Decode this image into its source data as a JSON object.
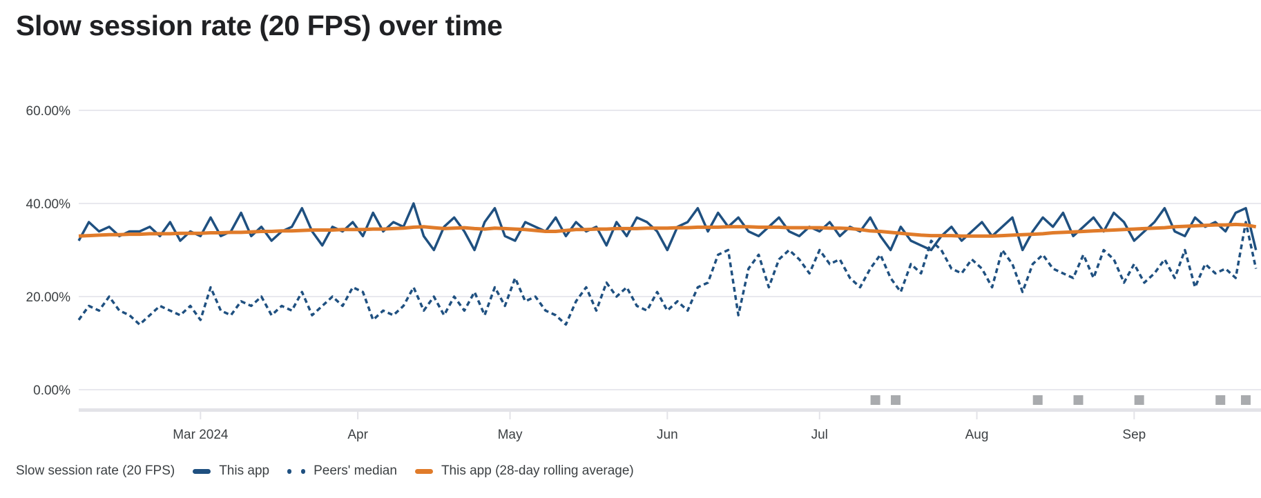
{
  "chart_data": {
    "type": "line",
    "title": "Slow session rate (20 FPS) over time",
    "xlabel": "",
    "ylabel": "",
    "xlim": [
      "2024-02-06",
      "2024-09-26"
    ],
    "ylim": [
      0,
      60
    ],
    "y_ticks": [
      "0.00%",
      "20.00%",
      "40.00%",
      "60.00%"
    ],
    "y_tick_values": [
      0,
      20,
      40,
      60
    ],
    "x_ticks": [
      {
        "label": "Mar 2024",
        "date": "2024-03-01"
      },
      {
        "label": "Apr",
        "date": "2024-04-01"
      },
      {
        "label": "May",
        "date": "2024-05-01"
      },
      {
        "label": "Jun",
        "date": "2024-06-01"
      },
      {
        "label": "Jul",
        "date": "2024-07-01"
      },
      {
        "label": "Aug",
        "date": "2024-08-01"
      },
      {
        "label": "Sep",
        "date": "2024-09-01"
      }
    ],
    "grid": true,
    "legend_placement": "bottom-left",
    "legend_title": "Slow session rate (20 FPS)",
    "x": [
      "2024-02-06",
      "2024-02-08",
      "2024-02-10",
      "2024-02-12",
      "2024-02-14",
      "2024-02-16",
      "2024-02-18",
      "2024-02-20",
      "2024-02-22",
      "2024-02-24",
      "2024-02-26",
      "2024-02-28",
      "2024-03-01",
      "2024-03-03",
      "2024-03-05",
      "2024-03-07",
      "2024-03-09",
      "2024-03-11",
      "2024-03-13",
      "2024-03-15",
      "2024-03-17",
      "2024-03-19",
      "2024-03-21",
      "2024-03-23",
      "2024-03-25",
      "2024-03-27",
      "2024-03-29",
      "2024-03-31",
      "2024-04-02",
      "2024-04-04",
      "2024-04-06",
      "2024-04-08",
      "2024-04-10",
      "2024-04-12",
      "2024-04-14",
      "2024-04-16",
      "2024-04-18",
      "2024-04-20",
      "2024-04-22",
      "2024-04-24",
      "2024-04-26",
      "2024-04-28",
      "2024-04-30",
      "2024-05-02",
      "2024-05-04",
      "2024-05-06",
      "2024-05-08",
      "2024-05-10",
      "2024-05-12",
      "2024-05-14",
      "2024-05-16",
      "2024-05-18",
      "2024-05-20",
      "2024-05-22",
      "2024-05-24",
      "2024-05-26",
      "2024-05-28",
      "2024-05-30",
      "2024-06-01",
      "2024-06-03",
      "2024-06-05",
      "2024-06-07",
      "2024-06-09",
      "2024-06-11",
      "2024-06-13",
      "2024-06-15",
      "2024-06-17",
      "2024-06-19",
      "2024-06-21",
      "2024-06-23",
      "2024-06-25",
      "2024-06-27",
      "2024-06-29",
      "2024-07-01",
      "2024-07-03",
      "2024-07-05",
      "2024-07-07",
      "2024-07-09",
      "2024-07-11",
      "2024-07-13",
      "2024-07-15",
      "2024-07-17",
      "2024-07-19",
      "2024-07-21",
      "2024-07-23",
      "2024-07-25",
      "2024-07-27",
      "2024-07-29",
      "2024-07-31",
      "2024-08-02",
      "2024-08-04",
      "2024-08-06",
      "2024-08-08",
      "2024-08-10",
      "2024-08-12",
      "2024-08-14",
      "2024-08-16",
      "2024-08-18",
      "2024-08-20",
      "2024-08-22",
      "2024-08-24",
      "2024-08-26",
      "2024-08-28",
      "2024-08-30",
      "2024-09-01",
      "2024-09-03",
      "2024-09-05",
      "2024-09-07",
      "2024-09-09",
      "2024-09-11",
      "2024-09-13",
      "2024-09-15",
      "2024-09-17",
      "2024-09-19",
      "2024-09-21",
      "2024-09-23",
      "2024-09-25"
    ],
    "series": [
      {
        "name": "This app",
        "color": "#1f5080",
        "style": "solid",
        "values": [
          32,
          36,
          34,
          35,
          33,
          34,
          34,
          35,
          33,
          36,
          32,
          34,
          33,
          37,
          33,
          34,
          38,
          33,
          35,
          32,
          34,
          35,
          39,
          34,
          31,
          35,
          34,
          36,
          33,
          38,
          34,
          36,
          35,
          40,
          33,
          30,
          35,
          37,
          34,
          30,
          36,
          39,
          33,
          32,
          36,
          35,
          34,
          37,
          33,
          36,
          34,
          35,
          31,
          36,
          33,
          37,
          36,
          34,
          30,
          35,
          36,
          39,
          34,
          38,
          35,
          37,
          34,
          33,
          35,
          37,
          34,
          33,
          35,
          34,
          36,
          33,
          35,
          34,
          37,
          33,
          30,
          35,
          32,
          31,
          30,
          33,
          35,
          32,
          34,
          36,
          33,
          35,
          37,
          30,
          34,
          37,
          35,
          38,
          33,
          35,
          37,
          34,
          38,
          36,
          32,
          34,
          36,
          39,
          34,
          33,
          37,
          35,
          36,
          34,
          38,
          39,
          30
        ]
      },
      {
        "name": "Peers' median",
        "color": "#1f5080",
        "style": "dashed",
        "values": [
          15,
          18,
          17,
          20,
          17,
          16,
          14,
          16,
          18,
          17,
          16,
          18,
          15,
          22,
          17,
          16,
          19,
          18,
          20,
          16,
          18,
          17,
          21,
          16,
          18,
          20,
          18,
          22,
          21,
          15,
          17,
          16,
          18,
          22,
          17,
          20,
          16,
          20,
          17,
          21,
          16,
          22,
          18,
          24,
          19,
          20,
          17,
          16,
          14,
          19,
          22,
          17,
          23,
          20,
          22,
          18,
          17,
          21,
          17,
          19,
          17,
          22,
          23,
          29,
          30,
          16,
          26,
          29,
          22,
          28,
          30,
          28,
          25,
          30,
          27,
          28,
          24,
          22,
          26,
          29,
          24,
          21,
          27,
          25,
          32,
          30,
          26,
          25,
          28,
          26,
          22,
          30,
          27,
          21,
          27,
          29,
          26,
          25,
          24,
          29,
          24,
          30,
          28,
          23,
          27,
          23,
          25,
          28,
          24,
          30,
          22,
          27,
          25,
          26,
          24,
          36,
          26
        ]
      },
      {
        "name": "This app (28-day rolling average)",
        "color": "#e07b2a",
        "style": "solid",
        "values": [
          33.0,
          33.1,
          33.2,
          33.3,
          33.3,
          33.4,
          33.4,
          33.5,
          33.5,
          33.5,
          33.6,
          33.6,
          33.6,
          33.7,
          33.7,
          33.8,
          33.8,
          33.9,
          34.0,
          34.0,
          34.1,
          34.1,
          34.2,
          34.3,
          34.3,
          34.3,
          34.4,
          34.4,
          34.4,
          34.5,
          34.5,
          34.6,
          34.7,
          34.9,
          35.0,
          34.8,
          34.6,
          34.7,
          34.8,
          34.6,
          34.5,
          34.7,
          34.6,
          34.5,
          34.4,
          34.2,
          34.0,
          34.0,
          34.2,
          34.4,
          34.4,
          34.5,
          34.5,
          34.6,
          34.6,
          34.6,
          34.7,
          34.7,
          34.7,
          34.8,
          34.8,
          34.9,
          34.9,
          34.9,
          35.0,
          35.0,
          35.0,
          34.9,
          34.9,
          34.9,
          34.8,
          34.8,
          34.8,
          34.8,
          34.7,
          34.7,
          34.6,
          34.4,
          34.1,
          34.0,
          33.8,
          33.6,
          33.4,
          33.2,
          33.1,
          33.1,
          33.1,
          33.0,
          33.0,
          33.0,
          33.0,
          33.1,
          33.2,
          33.3,
          33.4,
          33.5,
          33.7,
          33.8,
          33.9,
          34.0,
          34.1,
          34.2,
          34.3,
          34.4,
          34.5,
          34.6,
          34.7,
          34.8,
          35.0,
          35.1,
          35.2,
          35.3,
          35.4,
          35.4,
          35.5,
          35.4,
          35.0
        ]
      }
    ],
    "event_markers": {
      "color": "#a9abae",
      "dates": [
        "2024-07-12",
        "2024-07-16",
        "2024-08-13",
        "2024-08-21",
        "2024-09-02",
        "2024-09-18",
        "2024-09-23"
      ]
    },
    "grid_color": "#e8e8ee"
  }
}
